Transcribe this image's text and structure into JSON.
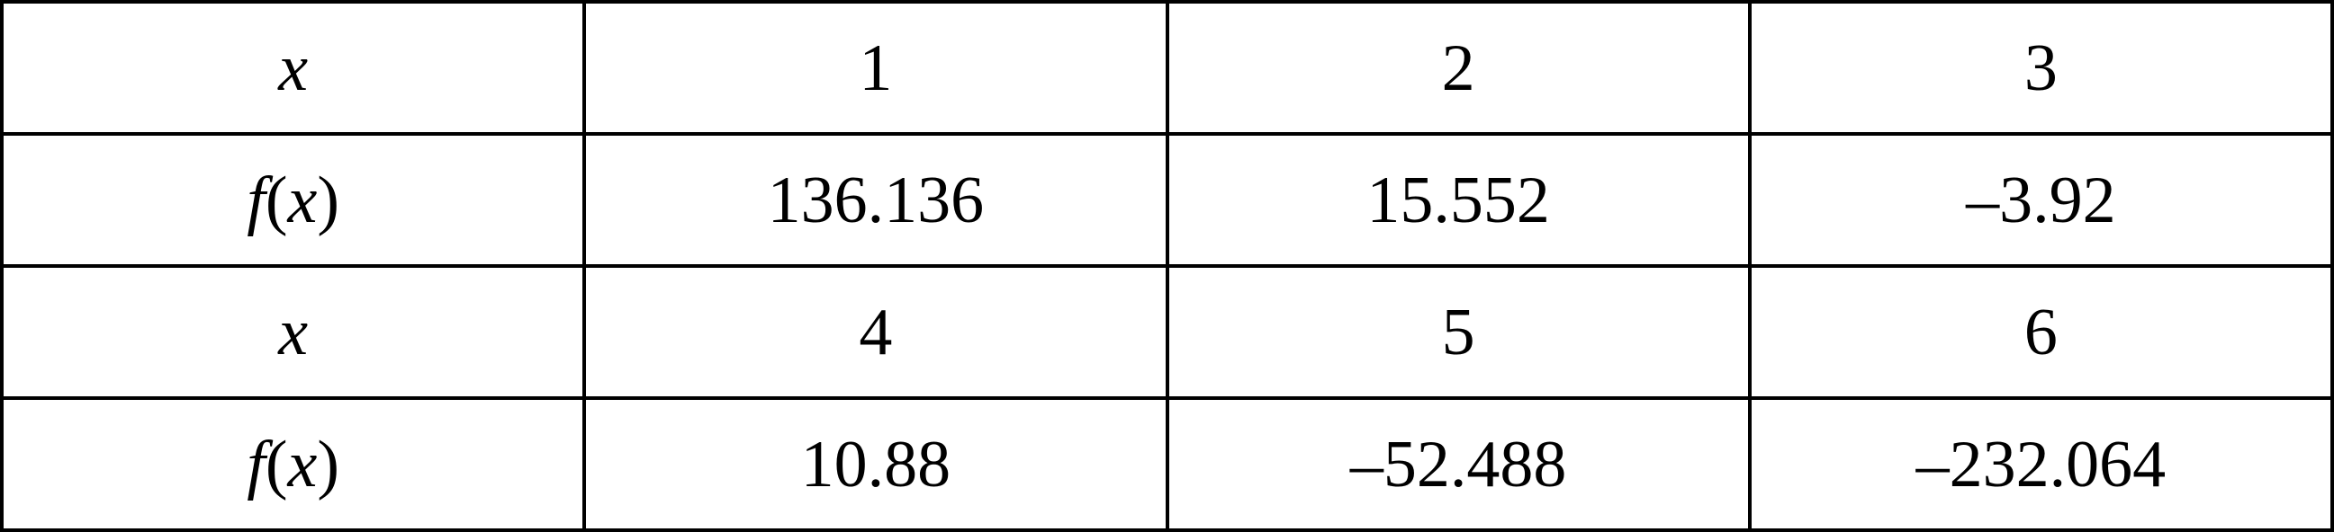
{
  "table": {
    "rows": [
      {
        "type": "x",
        "label": {
          "var": "x"
        },
        "values": [
          "1",
          "2",
          "3"
        ]
      },
      {
        "type": "fx",
        "label": {
          "func": "f",
          "open": "(",
          "var": "x",
          "close": ")"
        },
        "values": [
          "136.136",
          "15.552",
          "–3.92"
        ]
      },
      {
        "type": "x",
        "label": {
          "var": "x"
        },
        "values": [
          "4",
          "5",
          "6"
        ]
      },
      {
        "type": "fx",
        "label": {
          "func": "f",
          "open": "(",
          "var": "x",
          "close": ")"
        },
        "values": [
          "10.88",
          "–52.488",
          "–232.064"
        ]
      }
    ]
  }
}
